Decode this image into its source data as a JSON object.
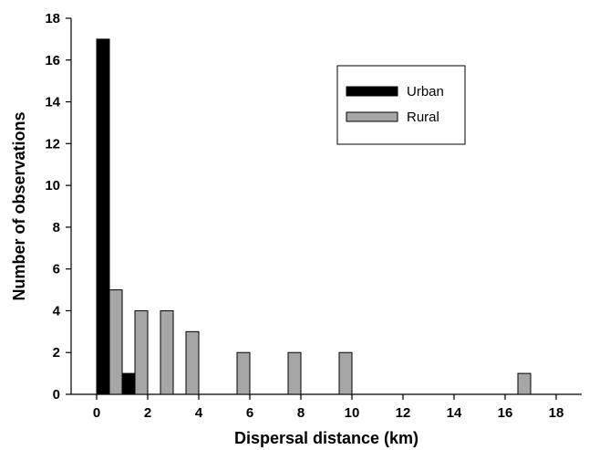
{
  "chart_data": {
    "type": "bar",
    "title": "",
    "xlabel": "Dispersal distance (km)",
    "ylabel": "Number of observations",
    "xlim": [
      -1,
      19
    ],
    "ylim": [
      0,
      18
    ],
    "xticks": [
      0,
      2,
      4,
      6,
      8,
      10,
      12,
      14,
      16,
      18
    ],
    "yticks": [
      0,
      2,
      4,
      6,
      8,
      10,
      12,
      14,
      16,
      18
    ],
    "grid": false,
    "legend_position": "top-right",
    "series": [
      {
        "name": "Urban",
        "color": "#000000",
        "points": [
          {
            "x": 0.5,
            "y": 17
          },
          {
            "x": 1.5,
            "y": 1
          }
        ]
      },
      {
        "name": "Rural",
        "color": "#a6a6a6",
        "points": [
          {
            "x": 0.5,
            "y": 5
          },
          {
            "x": 1.5,
            "y": 4
          },
          {
            "x": 2.5,
            "y": 4
          },
          {
            "x": 3.5,
            "y": 3
          },
          {
            "x": 5.5,
            "y": 2
          },
          {
            "x": 7.5,
            "y": 2
          },
          {
            "x": 9.5,
            "y": 2
          },
          {
            "x": 16.5,
            "y": 1
          }
        ]
      }
    ]
  }
}
